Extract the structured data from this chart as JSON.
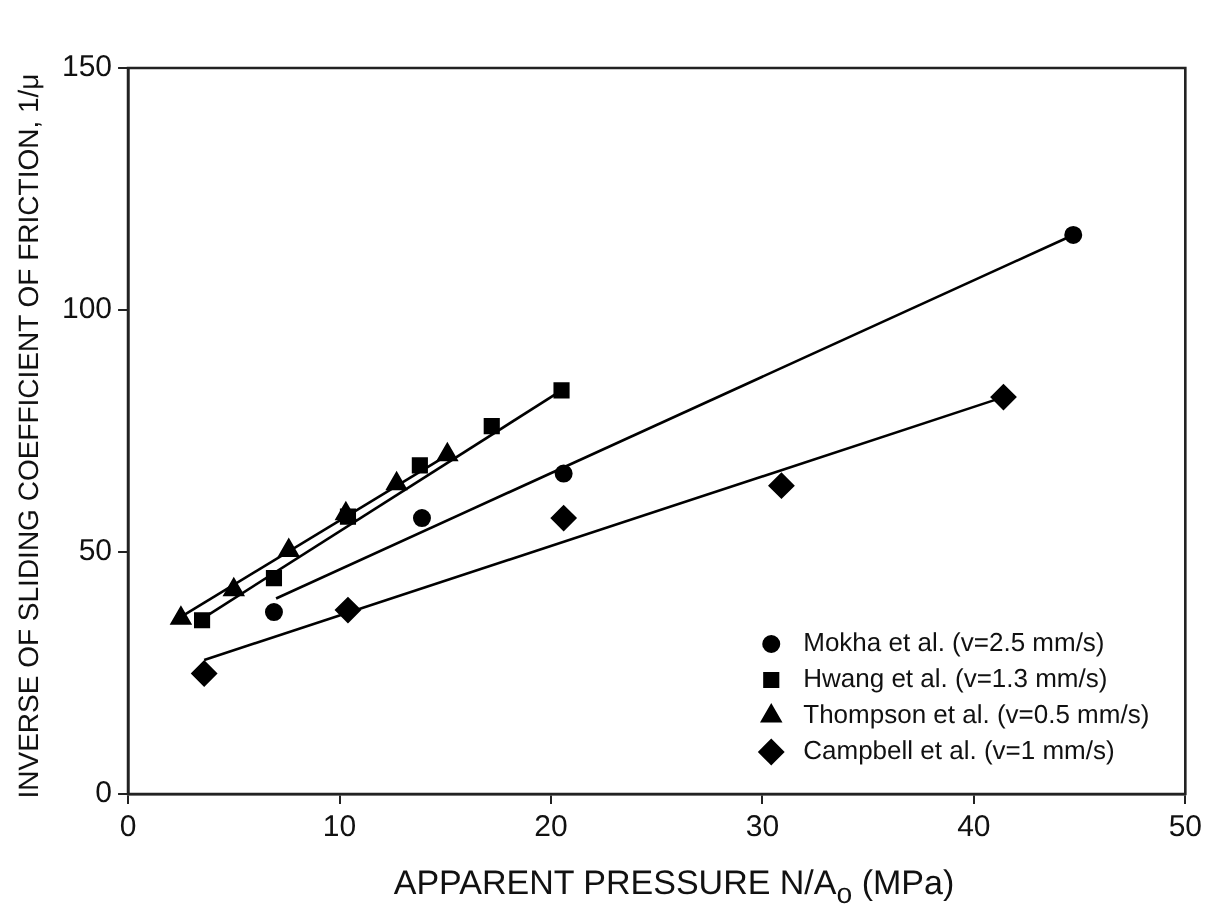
{
  "chart_data": {
    "type": "scatter",
    "xlabel": "APPARENT PRESSURE  N/A$_{o}$ (MPa)",
    "ylabel": "INVERSE OF SLIDING COEFFICIENT OF FRICTION, 1/μ",
    "xlim": [
      0,
      50
    ],
    "xticks": [
      0,
      10,
      20,
      30,
      40,
      50
    ],
    "ylim": [
      0,
      150
    ],
    "yticks": [
      0,
      50,
      100,
      150
    ],
    "grid": false,
    "legend": "bottom right",
    "series": [
      {
        "name": "Mokha et al. (v=2.5 mm/s)",
        "color": "#000000",
        "marker": "circle",
        "x": [
          6.9,
          13.9,
          20.6,
          44.7
        ],
        "values": [
          37.6,
          57.0,
          66.2,
          115.5
        ]
      },
      {
        "name": "Hwang et al. (v=1.3 mm/s)",
        "color": "#000000",
        "marker": "square",
        "x": [
          3.5,
          6.9,
          10.4,
          13.8,
          17.2,
          20.5
        ],
        "values": [
          35.9,
          44.6,
          57.3,
          67.9,
          76.0,
          83.4
        ]
      },
      {
        "name": "Thompson et al. (v=0.5 mm/s)",
        "color": "#000000",
        "marker": "triangle",
        "x": [
          2.5,
          5.0,
          7.6,
          10.3,
          12.7,
          15.1
        ],
        "values": [
          36.3,
          42.2,
          50.3,
          57.9,
          64.1,
          70.1
        ]
      },
      {
        "name": "Campbell et al. (v=1 mm/s)",
        "color": "#000000",
        "marker": "diamond",
        "x": [
          3.6,
          10.4,
          20.6,
          30.9,
          41.4
        ],
        "values": [
          24.9,
          38.0,
          57.0,
          63.7,
          82.0
        ]
      },
      {
        "type": "line",
        "color": "#000000",
        "marker": "none",
        "x": [
          7.0,
          44.7
        ],
        "values": [
          40.4,
          115.5
        ]
      },
      {
        "type": "line",
        "color": "#000000",
        "marker": "none",
        "x": [
          3.5,
          20.5
        ],
        "values": [
          36.2,
          83.4
        ]
      },
      {
        "type": "line",
        "color": "#000000",
        "marker": "none",
        "x": [
          2.5,
          15.1
        ],
        "values": [
          36.6,
          70.0
        ]
      },
      {
        "type": "line",
        "color": "#000000",
        "marker": "none",
        "x": [
          3.6,
          41.4
        ],
        "values": [
          27.7,
          82.0
        ]
      }
    ]
  }
}
